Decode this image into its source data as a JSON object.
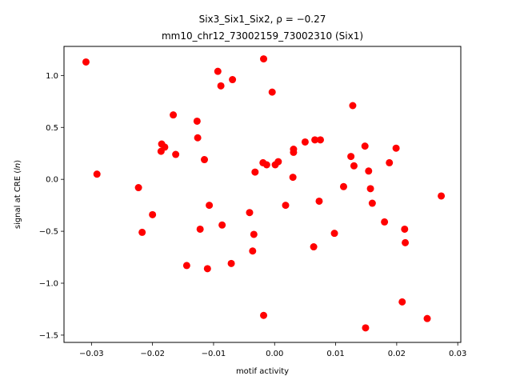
{
  "chart_data": {
    "type": "scatter",
    "title_line1": "Six3_Six1_Six2, ρ = −0.27",
    "title_line2": "mm10_chr12_73002159_73002310 (Six1)",
    "xlabel": "motif activity",
    "ylabel": "signal at CRE (",
    "ylabel_italic": "ln",
    "ylabel_close": ")",
    "xlim": [
      -0.0345,
      0.0305
    ],
    "ylim": [
      -1.57,
      1.28
    ],
    "xticks": [
      -0.03,
      -0.02,
      -0.01,
      0.0,
      0.01,
      0.02,
      0.03
    ],
    "xtick_labels": [
      "−0.03",
      "−0.02",
      "−0.01",
      "0.00",
      "0.01",
      "0.02",
      "0.03"
    ],
    "yticks": [
      -1.5,
      -1.0,
      -0.5,
      0.0,
      0.5,
      1.0
    ],
    "ytick_labels": [
      "−1.5",
      "−1.0",
      "−0.5",
      "0.0",
      "0.5",
      "1.0"
    ],
    "marker_color": "#ff0000",
    "points": [
      {
        "x": -0.0309,
        "y": 1.13
      },
      {
        "x": -0.0291,
        "y": 0.05
      },
      {
        "x": -0.0223,
        "y": -0.08
      },
      {
        "x": -0.0217,
        "y": -0.51
      },
      {
        "x": -0.02,
        "y": -0.34
      },
      {
        "x": -0.0186,
        "y": 0.27
      },
      {
        "x": -0.0185,
        "y": 0.34
      },
      {
        "x": -0.018,
        "y": 0.31
      },
      {
        "x": -0.0166,
        "y": 0.62
      },
      {
        "x": -0.0162,
        "y": 0.24
      },
      {
        "x": -0.0144,
        "y": -0.83
      },
      {
        "x": -0.0127,
        "y": 0.56
      },
      {
        "x": -0.0126,
        "y": 0.4
      },
      {
        "x": -0.0122,
        "y": -0.48
      },
      {
        "x": -0.0115,
        "y": 0.19
      },
      {
        "x": -0.011,
        "y": -0.86
      },
      {
        "x": -0.0107,
        "y": -0.25
      },
      {
        "x": -0.0093,
        "y": 1.04
      },
      {
        "x": -0.0088,
        "y": 0.9
      },
      {
        "x": -0.0086,
        "y": -0.44
      },
      {
        "x": -0.0071,
        "y": -0.81
      },
      {
        "x": -0.0069,
        "y": 0.96
      },
      {
        "x": -0.0041,
        "y": -0.32
      },
      {
        "x": -0.0036,
        "y": -0.69
      },
      {
        "x": -0.0034,
        "y": -0.53
      },
      {
        "x": -0.0032,
        "y": 0.07
      },
      {
        "x": -0.0019,
        "y": 0.16
      },
      {
        "x": -0.0018,
        "y": 1.16
      },
      {
        "x": -0.0018,
        "y": -1.31
      },
      {
        "x": -0.0013,
        "y": 0.14
      },
      {
        "x": -0.0004,
        "y": 0.84
      },
      {
        "x": 0.0001,
        "y": 0.14
      },
      {
        "x": 0.0006,
        "y": 0.17
      },
      {
        "x": 0.0018,
        "y": -0.25
      },
      {
        "x": 0.003,
        "y": 0.02
      },
      {
        "x": 0.0031,
        "y": 0.29
      },
      {
        "x": 0.0031,
        "y": 0.26
      },
      {
        "x": 0.005,
        "y": 0.36
      },
      {
        "x": 0.0064,
        "y": -0.65
      },
      {
        "x": 0.0066,
        "y": 0.38
      },
      {
        "x": 0.0073,
        "y": -0.21
      },
      {
        "x": 0.0075,
        "y": 0.38
      },
      {
        "x": 0.0098,
        "y": -0.52
      },
      {
        "x": 0.0113,
        "y": -0.07
      },
      {
        "x": 0.0125,
        "y": 0.22
      },
      {
        "x": 0.0128,
        "y": 0.71
      },
      {
        "x": 0.013,
        "y": 0.13
      },
      {
        "x": 0.0148,
        "y": 0.32
      },
      {
        "x": 0.0149,
        "y": -1.43
      },
      {
        "x": 0.0154,
        "y": 0.08
      },
      {
        "x": 0.0157,
        "y": -0.09
      },
      {
        "x": 0.016,
        "y": -0.23
      },
      {
        "x": 0.018,
        "y": -0.41
      },
      {
        "x": 0.0188,
        "y": 0.16
      },
      {
        "x": 0.0199,
        "y": 0.3
      },
      {
        "x": 0.0209,
        "y": -1.18
      },
      {
        "x": 0.0213,
        "y": -0.48
      },
      {
        "x": 0.0214,
        "y": -0.61
      },
      {
        "x": 0.025,
        "y": -1.34
      },
      {
        "x": 0.0273,
        "y": -0.16
      }
    ]
  }
}
